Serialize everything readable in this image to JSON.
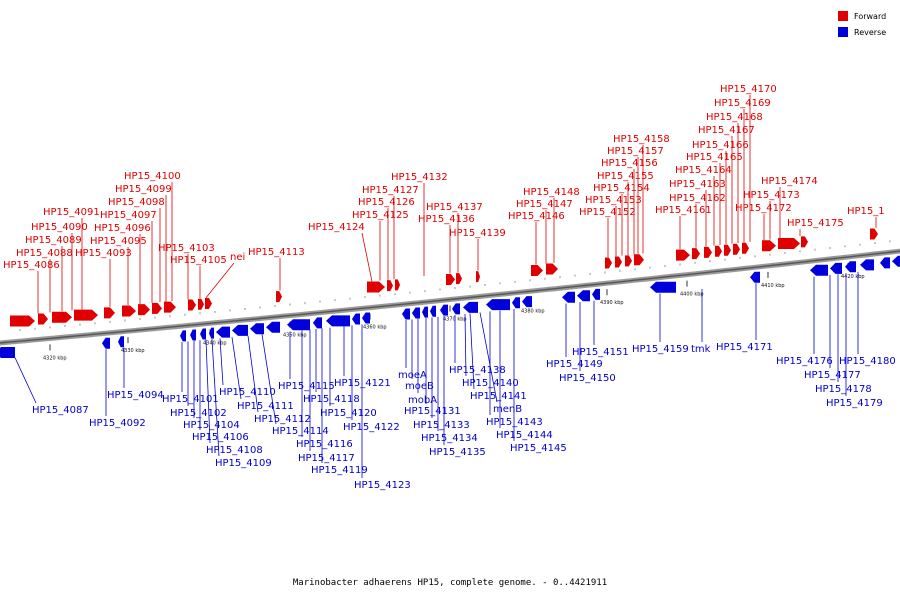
{
  "legend": {
    "forward_label": "Forward",
    "reverse_label": "Reverse",
    "forward_color": "#e00000",
    "reverse_color": "#0000dd"
  },
  "caption": "Marinobacter adhaerens HP15, complete genome. - 0..4421911",
  "axis_ticks": [
    "4320 kbp",
    "4330 kbp",
    "4340 kbp",
    "4350 kbp",
    "4360 kbp",
    "4370 kbp",
    "4380 kbp",
    "4390 kbp",
    "4400 kbp",
    "4410 kbp",
    "4420 kbp"
  ],
  "forward_labels": [
    "HP15_4086",
    "HP15_4088",
    "HP15_4089",
    "HP15_4090",
    "HP15_4091",
    "HP15_4093",
    "HP15_4095",
    "HP15_4096",
    "HP15_4097",
    "HP15_4098",
    "HP15_4099",
    "HP15_4100",
    "HP15_4103",
    "HP15_4105",
    "nei",
    "HP15_4113",
    "HP15_4124",
    "HP15_4125",
    "HP15_4126",
    "HP15_4127",
    "HP15_4132",
    "HP15_4136",
    "HP15_4137",
    "HP15_4139",
    "HP15_4146",
    "HP15_4147",
    "HP15_4148",
    "HP15_4152",
    "HP15_4153",
    "HP15_4154",
    "HP15_4155",
    "HP15_4156",
    "HP15_4157",
    "HP15_4158",
    "HP15_4161",
    "HP15_4162",
    "HP15_4163",
    "HP15_4164",
    "HP15_4165",
    "HP15_4166",
    "HP15_4167",
    "HP15_4168",
    "HP15_4169",
    "HP15_4170",
    "HP15_4172",
    "HP15_4173",
    "HP15_4174",
    "HP15_4175",
    "HP15_1"
  ],
  "reverse_labels": [
    "HP15_4087",
    "HP15_4092",
    "HP15_4094",
    "HP15_4101",
    "HP15_4102",
    "HP15_4104",
    "HP15_4106",
    "HP15_4108",
    "HP15_4109",
    "HP15_4110",
    "HP15_4111",
    "HP15_4112",
    "HP15_4114",
    "HP15_4115",
    "HP15_4116",
    "HP15_4117",
    "HP15_4118",
    "HP15_4119",
    "HP15_4120",
    "HP15_4121",
    "HP15_4122",
    "HP15_4123",
    "moeA",
    "moeB",
    "mobA",
    "HP15_4131",
    "HP15_4133",
    "HP15_4134",
    "HP15_4135",
    "HP15_4138",
    "HP15_4140",
    "HP15_4141",
    "menB",
    "HP15_4143",
    "HP15_4144",
    "HP15_4145",
    "HP15_4149",
    "HP15_4150",
    "HP15_4151",
    "HP15_4159",
    "tmk",
    "HP15_4171",
    "HP15_4176",
    "HP15_4177",
    "HP15_4178",
    "HP15_4179",
    "HP15_4180"
  ]
}
